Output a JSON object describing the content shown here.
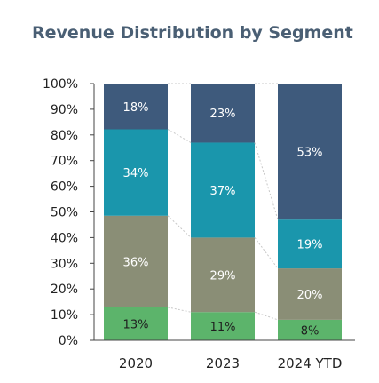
{
  "chart_data": {
    "type": "bar",
    "stacked": true,
    "normalized": true,
    "title": "Revenue Distribution by Segment",
    "xlabel": "",
    "ylabel": "",
    "ylim": [
      0,
      100
    ],
    "y_ticks": [
      "0%",
      "10%",
      "20%",
      "30%",
      "40%",
      "50%",
      "60%",
      "70%",
      "80%",
      "90%",
      "100%"
    ],
    "categories": [
      "2020",
      "2023",
      "2024 YTD"
    ],
    "legend": "none",
    "grid": false,
    "series": [
      {
        "color": "#5cb46b",
        "values": [
          13,
          11,
          8
        ],
        "labels": [
          "13%",
          "11%",
          "8%"
        ],
        "label_color": "#1f1f1f"
      },
      {
        "color": "#8a8e76",
        "values": [
          36,
          29,
          20
        ],
        "labels": [
          "36%",
          "29%",
          "20%"
        ],
        "label_color": "#ffffff"
      },
      {
        "color": "#1a96ac",
        "values": [
          34,
          37,
          19
        ],
        "labels": [
          "34%",
          "37%",
          "19%"
        ],
        "label_color": "#ffffff"
      },
      {
        "color": "#3e5a7c",
        "values": [
          18,
          23,
          53
        ],
        "labels": [
          "18%",
          "23%",
          "53%"
        ],
        "label_color": "#ffffff"
      }
    ],
    "colors": {
      "title": "#4a5f74",
      "axis": "#444444",
      "connector": "#c8c8c8"
    }
  }
}
